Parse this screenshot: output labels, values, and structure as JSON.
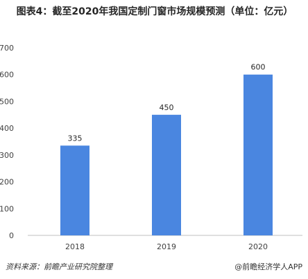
{
  "chart_data": {
    "type": "bar",
    "title": "图表4：截至2020年我国定制门窗市场规模预测（单位：亿元）",
    "categories": [
      "2018",
      "2019",
      "2020"
    ],
    "values": [
      335,
      450,
      600
    ],
    "data_labels": [
      "335",
      "450",
      "600"
    ],
    "y_ticks": [
      "0",
      "100",
      "200",
      "300",
      "400",
      "500",
      "600",
      "700"
    ],
    "ylim": [
      0,
      700
    ],
    "xlabel": "",
    "ylabel": "",
    "grid": false,
    "bar_color": "#4a86e0"
  },
  "footer": {
    "source": "资料来源：前瞻产业研究院整理",
    "credit": "@前瞻经济学人APP"
  }
}
